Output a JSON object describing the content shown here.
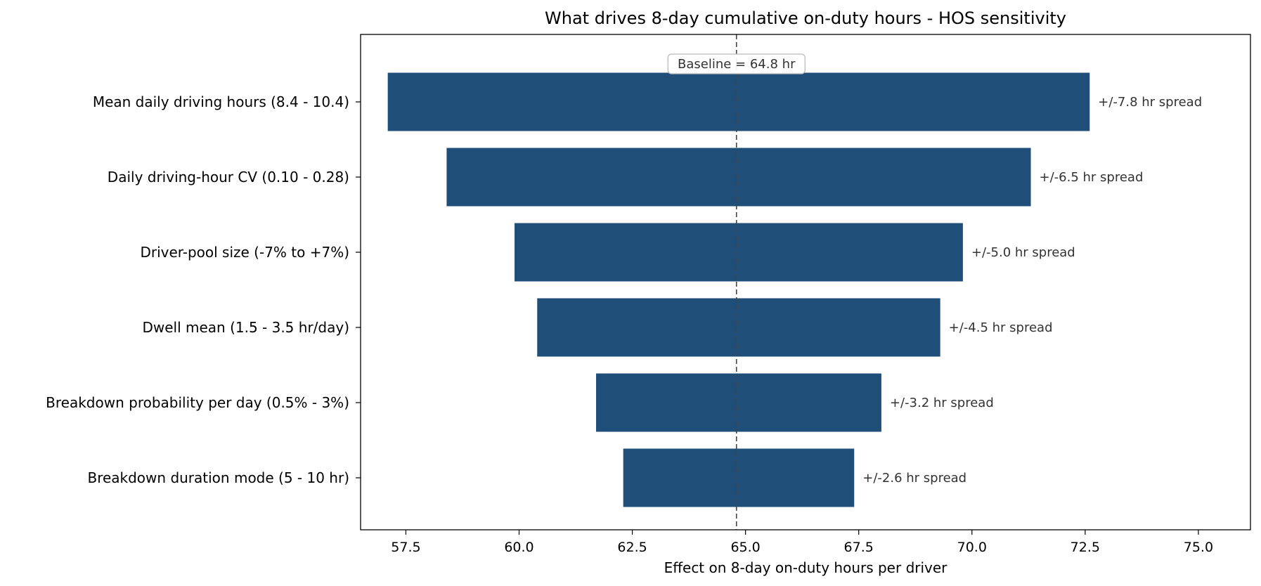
{
  "chart_data": {
    "type": "bar",
    "orientation": "horizontal",
    "chart_style": "tornado",
    "title": "What drives 8-day cumulative on-duty hours - HOS sensitivity",
    "xlabel": "Effect on 8-day on-duty hours per driver",
    "ylabel": "",
    "xlim": [
      56.5,
      76.15
    ],
    "xticks": [
      "57.5",
      "60.0",
      "62.5",
      "65.0",
      "67.5",
      "70.0",
      "72.5",
      "75.0"
    ],
    "grid": false,
    "baseline": {
      "value": 64.8,
      "label": "Baseline = 64.8 hr"
    },
    "bars": [
      {
        "category": "Mean daily driving hours (8.4 - 10.4)",
        "low": 57.1,
        "high": 72.6,
        "annotation": "+/-7.8 hr spread"
      },
      {
        "category": "Daily driving-hour CV (0.10 - 0.28)",
        "low": 58.4,
        "high": 71.3,
        "annotation": "+/-6.5 hr spread"
      },
      {
        "category": "Driver-pool size (-7% to +7%)",
        "low": 59.9,
        "high": 69.8,
        "annotation": "+/-5.0 hr spread"
      },
      {
        "category": "Dwell mean (1.5 - 3.5 hr/day)",
        "low": 60.4,
        "high": 69.3,
        "annotation": "+/-4.5 hr spread"
      },
      {
        "category": "Breakdown probability per day (0.5% - 3%)",
        "low": 61.7,
        "high": 68.0,
        "annotation": "+/-3.2 hr spread"
      },
      {
        "category": "Breakdown duration mode (5 - 10 hr)",
        "low": 62.3,
        "high": 67.4,
        "annotation": "+/-2.6 hr spread"
      }
    ],
    "colors": {
      "bar": "#1f4e79",
      "baseline_line": "#444444",
      "axes": "#000000"
    }
  }
}
